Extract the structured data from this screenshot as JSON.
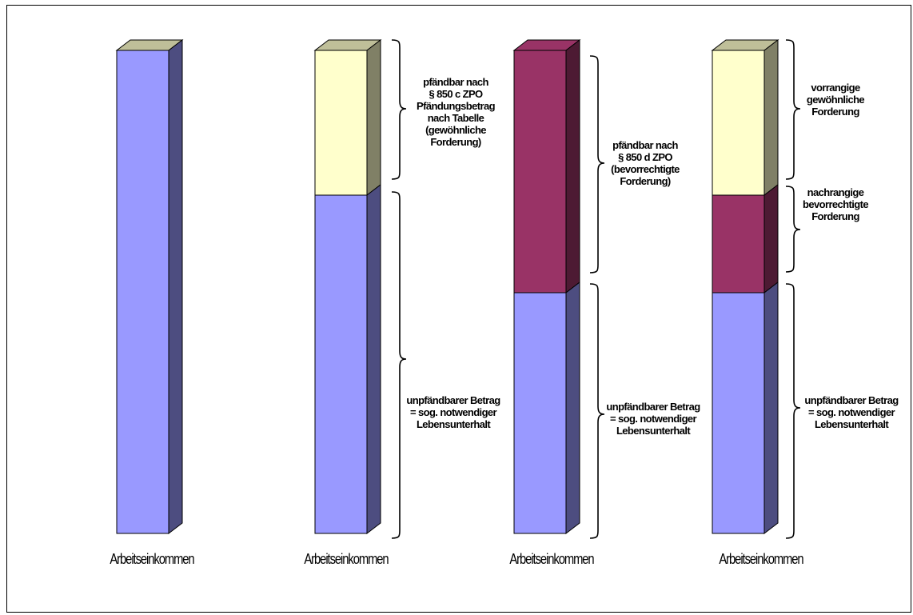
{
  "colors": {
    "blue": "#9999ff",
    "blue_side": "#4d4d80",
    "yellow": "#ffffcc",
    "yellow_side": "#808066",
    "purple": "#993366",
    "purple_side": "#4d1a33",
    "top": "#bfbf99"
  },
  "columns": [
    {
      "caption": "Arbeitseinkommen"
    },
    {
      "caption": "Arbeitseinkommen",
      "label_upper": "pfändbar nach\n§ 850 c ZPO\nPfändungsbetrag\nnach Tabelle\n(gewöhnliche\nForderung)",
      "label_lower": "unpfändbarer Betrag\n= sog. notwendiger\nLebensunterhalt"
    },
    {
      "caption": "Arbeitseinkommen",
      "label_upper": "pfändbar nach\n§ 850 d ZPO\n(bevorrechtigte\nForderung)",
      "label_lower": "unpfändbarer Betrag\n= sog. notwendiger\nLebensunterhalt"
    },
    {
      "caption": "Arbeitseinkommen",
      "label_upper": "vorrangige\ngewöhnliche\nForderung",
      "label_middle": "nachrangige\nbevorrechtigte\nForderung",
      "label_lower": "unpfändbarer Betrag\n= sog. notwendiger\nLebensunterhalt"
    }
  ]
}
